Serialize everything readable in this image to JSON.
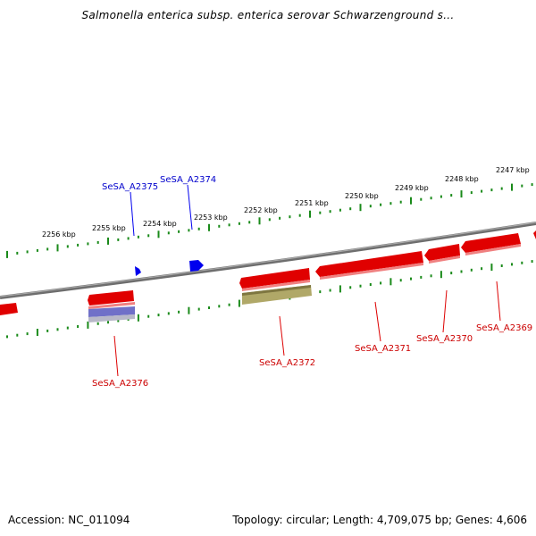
{
  "title": "Salmonella enterica subsp. enterica serovar Schwarzenground s...",
  "footer": {
    "accession": "Accession: NC_011094",
    "topology": "Topology: circular; Length: 4,709,075 bp; Genes: 4,606"
  },
  "colors": {
    "forward_gene": "#0000ee",
    "reverse_gene": "#ee0000",
    "tick": "#1a8a1a",
    "backbone": "#808080",
    "feature_olive": "#b0a868",
    "feature_purple": "#7070c8"
  },
  "scale_labels": [
    "2256 kbp",
    "2255 kbp",
    "2254 kbp",
    "2253 kbp",
    "2252 kbp",
    "2251 kbp",
    "2250 kbp",
    "2249 kbp",
    "2248 kbp",
    "2247 kbp"
  ],
  "genes": {
    "forward": [
      "SeSA_A2375",
      "SeSA_A2374"
    ],
    "reverse": [
      "SeSA_A2376",
      "SeSA_A2372",
      "SeSA_A2371",
      "SeSA_A2370",
      "SeSA_A2369"
    ]
  }
}
